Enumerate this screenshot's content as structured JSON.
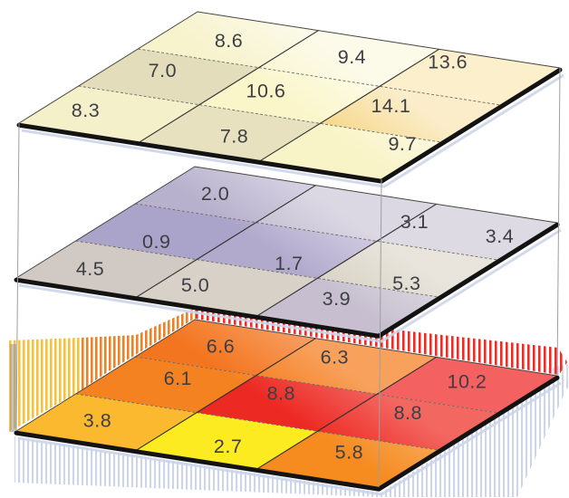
{
  "figure": {
    "title": "",
    "description": "Three stacked 3x3 grid layers shown in isometric view, each cell labeled with a numeric value",
    "text_color": "#3e3e44",
    "shadow_color": "#ccd5e9",
    "edge_color": "#131313",
    "connector_color": "#9e9e9e"
  },
  "chart_data": {
    "type": "heatmap",
    "layout": "3 stacked 3x3 layers; rows listed back-to-front, columns left-to-right as seen in the image",
    "layers": [
      {
        "name": "top",
        "palette": "cream-yellow",
        "rows": [
          [
            {
              "value": "8.6",
              "color": "#f7f3cd"
            },
            {
              "value": "9.4",
              "color": "#f9f5cf"
            },
            {
              "value": "13.6",
              "color": "#f7db8d"
            }
          ],
          [
            {
              "value": "7.0",
              "color": "#e3ddbc"
            },
            {
              "value": "10.6",
              "color": "#faf6ca"
            },
            {
              "value": "14.1",
              "color": "#f6d788"
            }
          ],
          [
            {
              "value": "8.3",
              "color": "#f4f0ca"
            },
            {
              "value": "7.8",
              "color": "#e7e1c0"
            },
            {
              "value": "9.7",
              "color": "#f9f4c7"
            }
          ]
        ]
      },
      {
        "name": "middle",
        "palette": "gray-purple",
        "rows": [
          [
            {
              "value": "2.0",
              "color": "#b8b1cd"
            },
            {
              "value": "3.1",
              "color": "#c3bdd1"
            },
            {
              "value": "3.4",
              "color": "#c7c1d1"
            }
          ],
          [
            {
              "value": "0.9",
              "color": "#aba4ca"
            },
            {
              "value": "1.7",
              "color": "#b2aacd"
            },
            {
              "value": "5.3",
              "color": "#d9d3c5"
            }
          ],
          [
            {
              "value": "4.5",
              "color": "#d0c9c4"
            },
            {
              "value": "5.0",
              "color": "#d7d1c8"
            },
            {
              "value": "3.9",
              "color": "#c7bfcf"
            }
          ]
        ]
      },
      {
        "name": "bottom",
        "palette": "orange-red",
        "rows": [
          [
            {
              "value": "6.6",
              "color": "#f4751f"
            },
            {
              "value": "6.3",
              "color": "#f57d1e"
            },
            {
              "value": "10.2",
              "color": "#ee2424"
            }
          ],
          [
            {
              "value": "6.1",
              "color": "#f58221"
            },
            {
              "value": "8.8",
              "color": "#ed2923"
            },
            {
              "value": "8.8",
              "color": "#ee2c24"
            }
          ],
          [
            {
              "value": "3.8",
              "color": "#fbb92f"
            },
            {
              "value": "2.7",
              "color": "#fdeb21"
            },
            {
              "value": "5.8",
              "color": "#f68b20"
            }
          ]
        ]
      }
    ]
  }
}
